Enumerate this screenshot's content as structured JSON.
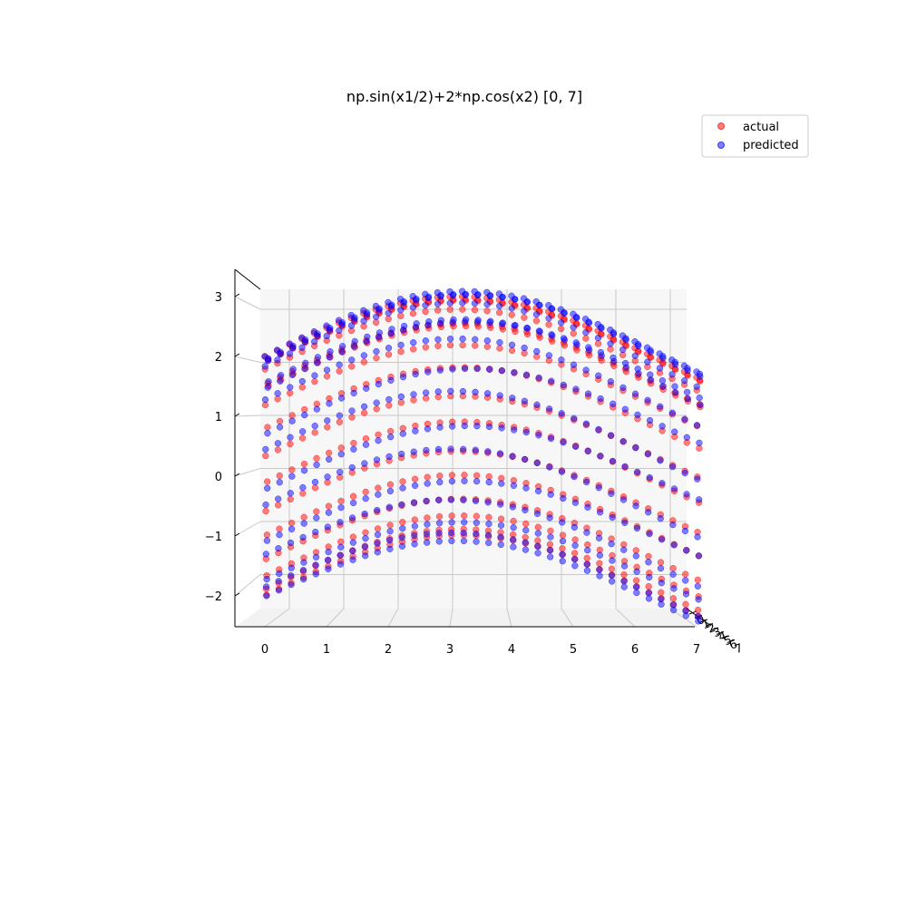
{
  "chart_data": {
    "type": "scatter",
    "projection": "3d",
    "title": "np.sin(x1/2)+2*np.cos(x2) [0, 7]",
    "function": "np.sin(x1/2)+2*np.cos(x2)",
    "domain": [
      0,
      7
    ],
    "x_ticks": [
      "0",
      "1",
      "2",
      "3",
      "4",
      "5",
      "6",
      "7"
    ],
    "z_ticks": [
      "3",
      "2",
      "1",
      "0",
      "−1",
      "−2"
    ],
    "depth_ticks": [
      "0",
      "1",
      "2",
      "3",
      "4",
      "5",
      "6",
      "7"
    ],
    "xlim": [
      -0.5,
      7.5
    ],
    "zlim": [
      -2.6,
      3.3
    ],
    "grid": true,
    "legend": {
      "placement": "top-right"
    },
    "series": [
      {
        "name": "actual",
        "color": "#ff0000",
        "alpha": 0.5
      },
      {
        "name": "predicted",
        "color": "#0000ff",
        "alpha": 0.5
      }
    ]
  },
  "colors": {
    "pane": "#f7f7f7",
    "grid": "#c8c8c8",
    "axis": "#000000"
  }
}
